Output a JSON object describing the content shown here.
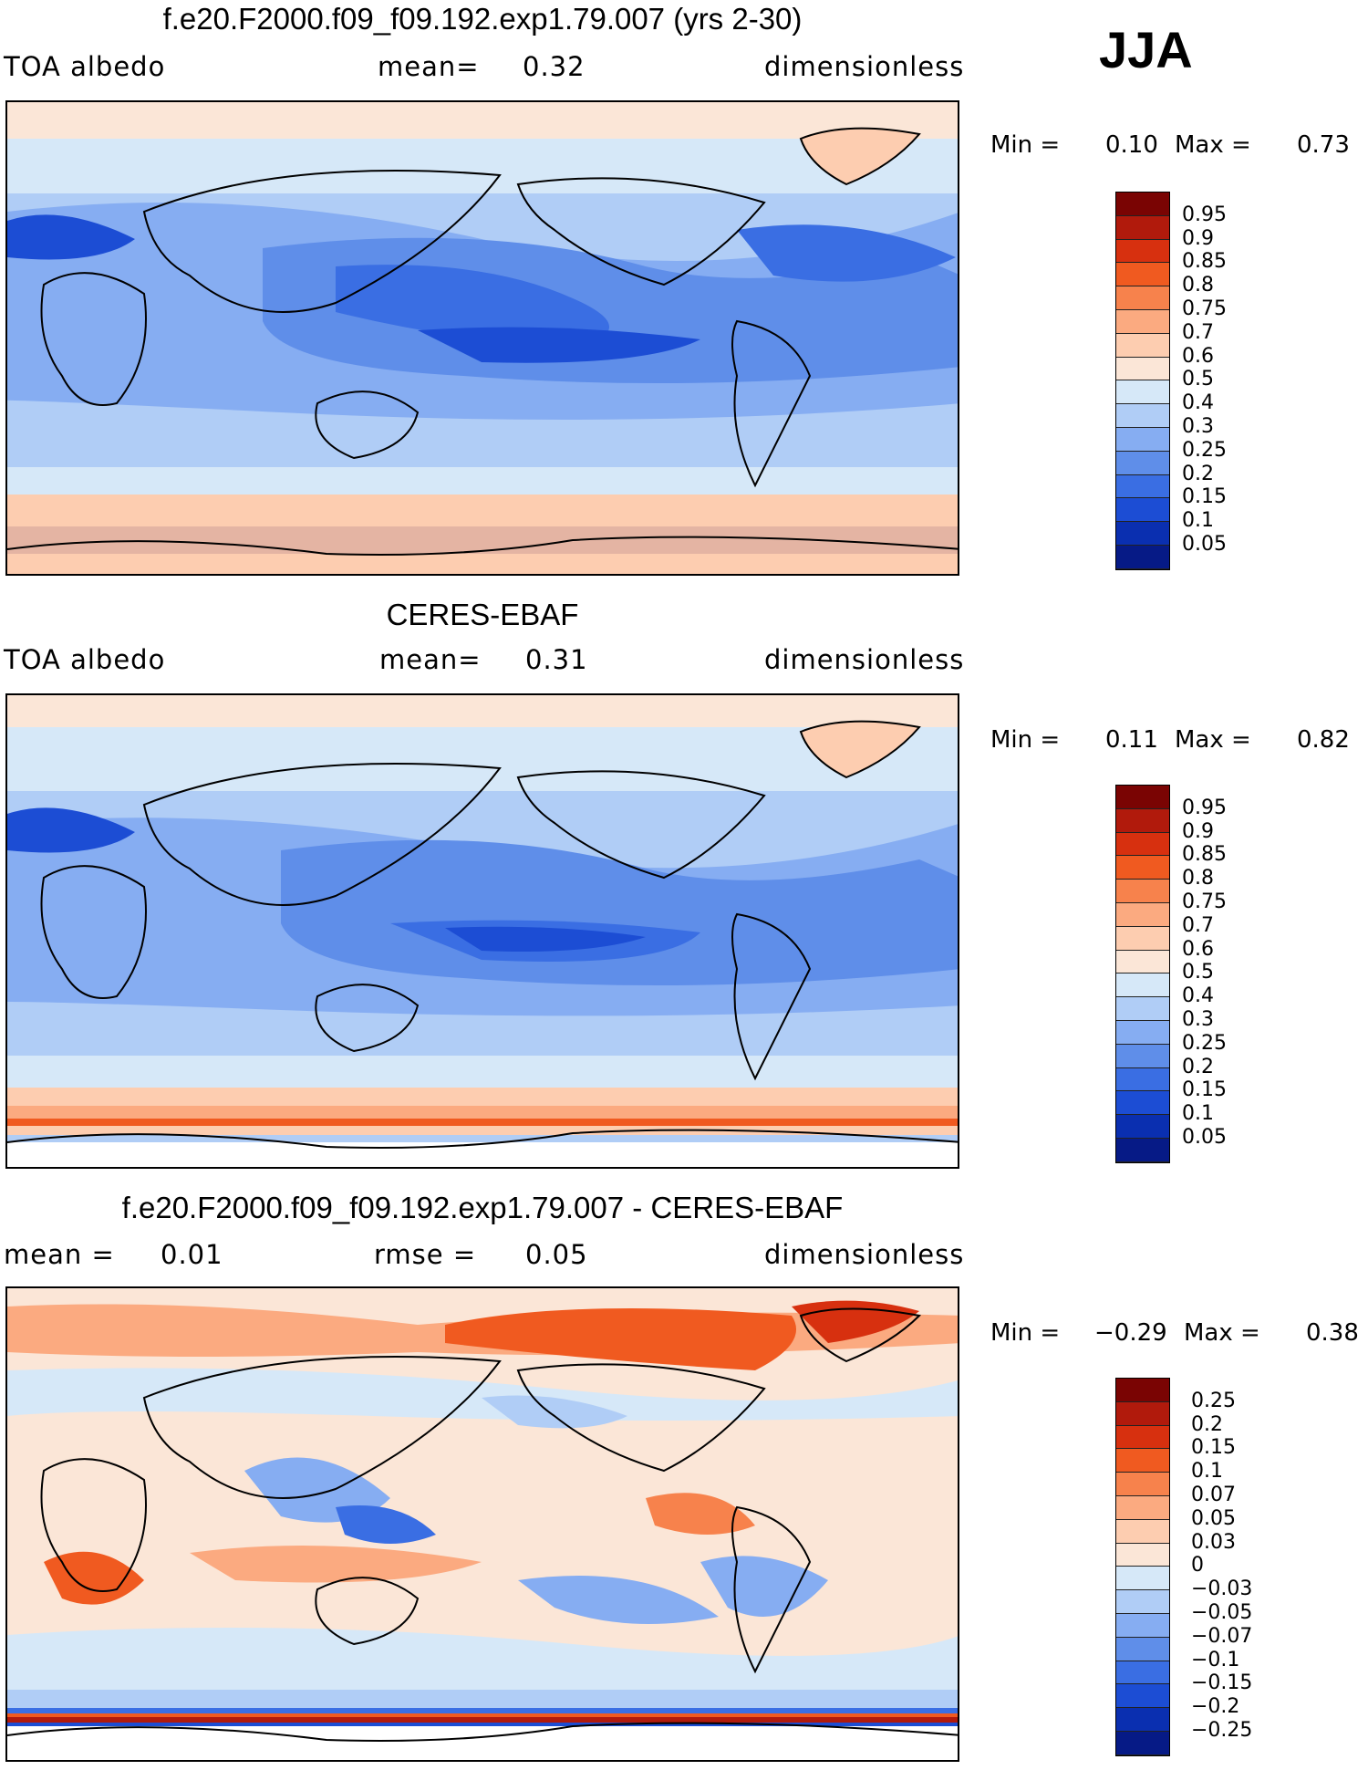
{
  "season": "JJA",
  "panels": [
    {
      "title": "f.e20.F2000.f09_f09.192.exp1.79.007 (yrs 2-30)",
      "left_label": "TOA albedo",
      "stat1_label": "mean=",
      "stat1_value": "0.32",
      "stat2_label": "",
      "stat2_value": "",
      "units": "dimensionless",
      "min_label": "Min =",
      "min_value": "0.10",
      "max_label": "Max =",
      "max_value": "0.73",
      "colorbar_labels": [
        "0.95",
        "0.9",
        "0.85",
        "0.8",
        "0.75",
        "0.7",
        "0.6",
        "0.5",
        "0.4",
        "0.3",
        "0.25",
        "0.2",
        "0.15",
        "0.1",
        "0.05"
      ],
      "colorbar_colors": [
        "#7a0403",
        "#b11a0c",
        "#d7300f",
        "#f05a20",
        "#f7824c",
        "#fbaa80",
        "#fdcdb0",
        "#fbe6d7",
        "#d6e8f8",
        "#b0cdf6",
        "#86adf2",
        "#5f8ee9",
        "#3a6ee3",
        "#1c4dd4",
        "#0a2fb0",
        "#061a86"
      ]
    },
    {
      "title": "CERES-EBAF",
      "left_label": "TOA albedo",
      "stat1_label": "mean=",
      "stat1_value": "0.31",
      "stat2_label": "",
      "stat2_value": "",
      "units": "dimensionless",
      "min_label": "Min =",
      "min_value": "0.11",
      "max_label": "Max =",
      "max_value": "0.82",
      "colorbar_labels": [
        "0.95",
        "0.9",
        "0.85",
        "0.8",
        "0.75",
        "0.7",
        "0.6",
        "0.5",
        "0.4",
        "0.3",
        "0.25",
        "0.2",
        "0.15",
        "0.1",
        "0.05"
      ],
      "colorbar_colors": [
        "#7a0403",
        "#b11a0c",
        "#d7300f",
        "#f05a20",
        "#f7824c",
        "#fbaa80",
        "#fdcdb0",
        "#fbe6d7",
        "#d6e8f8",
        "#b0cdf6",
        "#86adf2",
        "#5f8ee9",
        "#3a6ee3",
        "#1c4dd4",
        "#0a2fb0",
        "#061a86"
      ]
    },
    {
      "title": "f.e20.F2000.f09_f09.192.exp1.79.007 - CERES-EBAF",
      "left_label": "mean =",
      "left_value": "0.01",
      "stat1_label": "rmse =",
      "stat1_value": "0.05",
      "units": "dimensionless",
      "min_label": "Min =",
      "min_value": "−0.29",
      "max_label": "Max =",
      "max_value": "0.38",
      "colorbar_labels": [
        "0.25",
        "0.2",
        "0.15",
        "0.1",
        "0.07",
        "0.05",
        "0.03",
        "0",
        "−0.03",
        "−0.05",
        "−0.07",
        "−0.1",
        "−0.15",
        "−0.2",
        "−0.25"
      ],
      "colorbar_colors": [
        "#7a0403",
        "#b11a0c",
        "#d7300f",
        "#f05a20",
        "#f7824c",
        "#fbaa80",
        "#fdcdb0",
        "#fbe6d7",
        "#d6e8f8",
        "#b0cdf6",
        "#86adf2",
        "#5f8ee9",
        "#3a6ee3",
        "#1c4dd4",
        "#0a2fb0",
        "#061a86"
      ]
    }
  ]
}
